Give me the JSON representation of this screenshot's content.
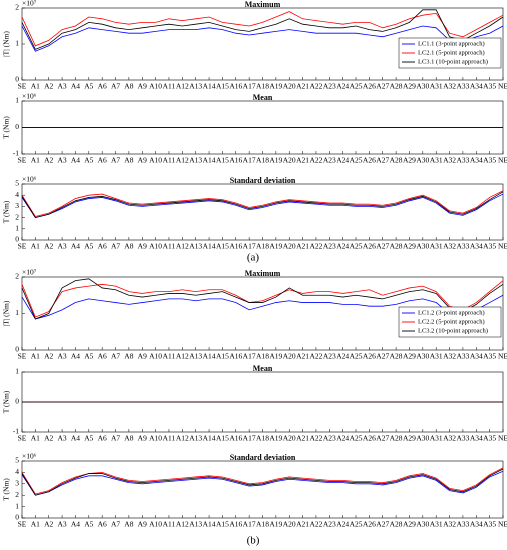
{
  "panel_labels": [
    "(a)",
    "(b)"
  ],
  "chart_data": [
    {
      "type": "line",
      "title": "Maximum",
      "y_label": "|T| (Nm)",
      "y_exponent": "×10⁷",
      "legend": "right",
      "categories": [
        "SE",
        "A1",
        "A2",
        "A3",
        "A4",
        "A5",
        "A6",
        "A7",
        "A8",
        "A9",
        "A10",
        "A11",
        "A12",
        "A13",
        "A14",
        "A15",
        "A16",
        "A17",
        "A18",
        "A19",
        "A20",
        "A21",
        "A22",
        "A23",
        "A24",
        "A25",
        "A26",
        "A27",
        "A28",
        "A29",
        "A30",
        "A31",
        "A32",
        "A33",
        "A34",
        "A35",
        "NE"
      ],
      "ylim": [
        0,
        2
      ],
      "yticks": [
        0,
        1,
        2
      ],
      "series": [
        {
          "name": "LC1.1 (3-point approach)",
          "color": "#0000ff",
          "values": [
            1.5,
            0.8,
            0.95,
            1.2,
            1.3,
            1.45,
            1.4,
            1.35,
            1.3,
            1.3,
            1.35,
            1.4,
            1.4,
            1.4,
            1.45,
            1.4,
            1.3,
            1.25,
            1.3,
            1.35,
            1.4,
            1.35,
            1.3,
            1.3,
            1.3,
            1.3,
            1.25,
            1.2,
            1.3,
            1.4,
            1.5,
            1.45,
            1.1,
            1.05,
            1.2,
            1.3,
            1.5
          ]
        },
        {
          "name": "LC2.1 (5-point approach)",
          "color": "#ff0000",
          "values": [
            1.75,
            0.95,
            1.1,
            1.4,
            1.5,
            1.75,
            1.7,
            1.6,
            1.55,
            1.6,
            1.6,
            1.7,
            1.65,
            1.7,
            1.75,
            1.6,
            1.55,
            1.5,
            1.6,
            1.75,
            1.9,
            1.7,
            1.65,
            1.6,
            1.55,
            1.6,
            1.6,
            1.45,
            1.55,
            1.7,
            1.8,
            1.85,
            1.3,
            1.2,
            1.4,
            1.6,
            1.8
          ]
        },
        {
          "name": "LC3.1 (10-point approach)",
          "color": "#000000",
          "values": [
            1.6,
            0.85,
            1.0,
            1.3,
            1.4,
            1.6,
            1.55,
            1.45,
            1.4,
            1.45,
            1.5,
            1.55,
            1.5,
            1.55,
            1.6,
            1.5,
            1.4,
            1.35,
            1.45,
            1.55,
            1.7,
            1.55,
            1.5,
            1.45,
            1.45,
            1.5,
            1.4,
            1.35,
            1.45,
            1.6,
            1.95,
            1.95,
            1.2,
            1.1,
            1.3,
            1.5,
            1.75
          ]
        }
      ]
    },
    {
      "type": "line",
      "title": "Mean",
      "y_label": "T (Nm)",
      "y_exponent": "×10⁶",
      "categories": [
        "SE",
        "A1",
        "A2",
        "A3",
        "A4",
        "A5",
        "A6",
        "A7",
        "A8",
        "A9",
        "A10",
        "A11",
        "A12",
        "A13",
        "A14",
        "A15",
        "A16",
        "A17",
        "A18",
        "A19",
        "A20",
        "A21",
        "A22",
        "A23",
        "A24",
        "A25",
        "A26",
        "A27",
        "A28",
        "A29",
        "A30",
        "A31",
        "A32",
        "A33",
        "A34",
        "A35",
        "NE"
      ],
      "ylim": [
        -1,
        1
      ],
      "yticks": [
        -1,
        0,
        1
      ],
      "series": [
        {
          "color": "#0000ff",
          "values": [
            0,
            0,
            0,
            0,
            0,
            0,
            0,
            0,
            0,
            0,
            0,
            0,
            0,
            0,
            0,
            0,
            0,
            0,
            0,
            0,
            0,
            0,
            0,
            0,
            0,
            0,
            0,
            0,
            0,
            0,
            0,
            0,
            0,
            0,
            0,
            0,
            0
          ]
        },
        {
          "color": "#ff0000",
          "values": [
            0,
            0,
            0,
            0,
            0,
            0,
            0,
            0,
            0,
            0,
            0,
            0,
            0,
            0,
            0,
            0,
            0,
            0,
            0,
            0,
            0,
            0,
            0,
            0,
            0,
            0,
            0,
            0,
            0,
            0,
            0,
            0,
            0,
            0,
            0,
            0,
            0
          ]
        },
        {
          "color": "#000000",
          "values": [
            0,
            0,
            0,
            0,
            0,
            0,
            0,
            0,
            0,
            0,
            0,
            0,
            0,
            0,
            0,
            0,
            0,
            0,
            0,
            0,
            0,
            0,
            0,
            0,
            0,
            0,
            0,
            0,
            0,
            0,
            0,
            0,
            0,
            0,
            0,
            0,
            0
          ]
        }
      ]
    },
    {
      "type": "line",
      "title": "Standard deviation",
      "y_label": "T (Nm)",
      "y_exponent": "×10⁶",
      "categories": [
        "SE",
        "A1",
        "A2",
        "A3",
        "A4",
        "A5",
        "A6",
        "A7",
        "A8",
        "A9",
        "A10",
        "A11",
        "A12",
        "A13",
        "A14",
        "A15",
        "A16",
        "A17",
        "A18",
        "A19",
        "A20",
        "A21",
        "A22",
        "A23",
        "A24",
        "A25",
        "A26",
        "A27",
        "A28",
        "A29",
        "A30",
        "A31",
        "A32",
        "A33",
        "A34",
        "A35",
        "NE"
      ],
      "ylim": [
        0,
        5
      ],
      "yticks": [
        0,
        1,
        2,
        3,
        4,
        5
      ],
      "series": [
        {
          "color": "#0000ff",
          "values": [
            3.8,
            2.0,
            2.3,
            2.8,
            3.4,
            3.7,
            3.8,
            3.5,
            3.1,
            3.0,
            3.1,
            3.2,
            3.3,
            3.4,
            3.5,
            3.4,
            3.1,
            2.7,
            2.9,
            3.2,
            3.4,
            3.3,
            3.2,
            3.1,
            3.1,
            3.0,
            3.0,
            2.9,
            3.1,
            3.5,
            3.8,
            3.3,
            2.4,
            2.2,
            2.7,
            3.5,
            4.1
          ]
        },
        {
          "color": "#ff0000",
          "values": [
            4.0,
            2.1,
            2.4,
            3.0,
            3.7,
            4.0,
            4.1,
            3.7,
            3.3,
            3.2,
            3.3,
            3.4,
            3.5,
            3.6,
            3.7,
            3.6,
            3.3,
            2.9,
            3.1,
            3.4,
            3.6,
            3.5,
            3.4,
            3.3,
            3.3,
            3.2,
            3.2,
            3.1,
            3.3,
            3.7,
            4.0,
            3.5,
            2.6,
            2.4,
            2.9,
            3.8,
            4.4
          ]
        },
        {
          "color": "#000000",
          "values": [
            3.9,
            2.0,
            2.3,
            2.9,
            3.5,
            3.8,
            3.9,
            3.6,
            3.2,
            3.1,
            3.2,
            3.3,
            3.4,
            3.5,
            3.6,
            3.5,
            3.2,
            2.8,
            3.0,
            3.3,
            3.5,
            3.4,
            3.3,
            3.2,
            3.2,
            3.1,
            3.1,
            3.0,
            3.2,
            3.6,
            3.9,
            3.4,
            2.5,
            2.3,
            2.8,
            3.6,
            4.3
          ]
        }
      ]
    },
    {
      "type": "line",
      "title": "Maximum",
      "y_label": "|T| (Nm)",
      "y_exponent": "×10⁷",
      "legend": "right",
      "categories": [
        "SE",
        "A1",
        "A2",
        "A3",
        "A4",
        "A5",
        "A6",
        "A7",
        "A8",
        "A9",
        "A10",
        "A11",
        "A12",
        "A13",
        "A14",
        "A15",
        "A16",
        "A17",
        "A18",
        "A19",
        "A20",
        "A21",
        "A22",
        "A23",
        "A24",
        "A25",
        "A26",
        "A27",
        "A28",
        "A29",
        "A30",
        "A31",
        "A32",
        "A33",
        "A34",
        "A35",
        "NE"
      ],
      "ylim": [
        0,
        2
      ],
      "yticks": [
        0,
        1,
        2
      ],
      "series": [
        {
          "name": "LC1.2 (3-point approach)",
          "color": "#0000ff",
          "values": [
            1.45,
            0.85,
            0.95,
            1.1,
            1.3,
            1.4,
            1.35,
            1.3,
            1.25,
            1.3,
            1.35,
            1.4,
            1.4,
            1.35,
            1.4,
            1.4,
            1.3,
            1.1,
            1.2,
            1.3,
            1.35,
            1.3,
            1.3,
            1.3,
            1.25,
            1.25,
            1.2,
            1.2,
            1.25,
            1.35,
            1.4,
            1.3,
            1.0,
            0.95,
            1.1,
            1.3,
            1.5
          ]
        },
        {
          "name": "LC2.2 (5-point approach)",
          "color": "#ff0000",
          "values": [
            1.8,
            0.9,
            1.05,
            1.6,
            1.7,
            1.75,
            1.8,
            1.75,
            1.6,
            1.55,
            1.6,
            1.6,
            1.65,
            1.6,
            1.65,
            1.65,
            1.5,
            1.3,
            1.35,
            1.5,
            1.65,
            1.55,
            1.6,
            1.6,
            1.55,
            1.6,
            1.65,
            1.5,
            1.6,
            1.7,
            1.75,
            1.6,
            1.2,
            1.1,
            1.3,
            1.6,
            1.9
          ]
        },
        {
          "name": "LC3.2 (10-point approach)",
          "color": "#000000",
          "values": [
            1.7,
            0.85,
            1.0,
            1.7,
            1.9,
            1.95,
            1.7,
            1.65,
            1.5,
            1.45,
            1.5,
            1.55,
            1.55,
            1.5,
            1.55,
            1.6,
            1.45,
            1.3,
            1.3,
            1.45,
            1.7,
            1.5,
            1.5,
            1.5,
            1.45,
            1.5,
            1.45,
            1.4,
            1.5,
            1.6,
            1.65,
            1.55,
            1.15,
            1.05,
            1.25,
            1.55,
            1.8
          ]
        }
      ]
    },
    {
      "type": "line",
      "title": "Mean",
      "y_label": "T (Nm)",
      "categories": [
        "SE",
        "A1",
        "A2",
        "A3",
        "A4",
        "A5",
        "A6",
        "A7",
        "A8",
        "A9",
        "A10",
        "A11",
        "A12",
        "A13",
        "A14",
        "A15",
        "A16",
        "A17",
        "A18",
        "A19",
        "A20",
        "A21",
        "A22",
        "A23",
        "A24",
        "A25",
        "A26",
        "A27",
        "A28",
        "A29",
        "A30",
        "A31",
        "A32",
        "A33",
        "A34",
        "A35",
        "NE"
      ],
      "ylim": [
        -1,
        1
      ],
      "yticks": [
        -1,
        0,
        1
      ],
      "series": [
        {
          "color": "#0000ff",
          "values": [
            0,
            0,
            0,
            0,
            0,
            0,
            0,
            0,
            0,
            0,
            0,
            0,
            0,
            0,
            0,
            0,
            0,
            0,
            0,
            0,
            0,
            0,
            0,
            0,
            0,
            0,
            0,
            0,
            0,
            0,
            0,
            0,
            0,
            0,
            0,
            0,
            0
          ]
        },
        {
          "color": "#ff0000",
          "values": [
            0,
            0,
            0,
            0,
            0,
            0,
            0,
            0,
            0,
            0,
            0,
            0,
            0,
            0,
            0,
            0,
            0,
            0,
            0,
            0,
            0,
            0,
            0,
            0,
            0,
            0,
            0,
            0,
            0,
            0,
            0,
            0,
            0,
            0,
            0,
            0,
            0
          ]
        },
        {
          "color": "#000000",
          "values": [
            0,
            0,
            0,
            0,
            0,
            0,
            0,
            0,
            0,
            0,
            0,
            0,
            0,
            0,
            0,
            0,
            0,
            0,
            0,
            0,
            0,
            0,
            0,
            0,
            0,
            0,
            0,
            0,
            0,
            0,
            0,
            0,
            0,
            0,
            0,
            0,
            0
          ]
        }
      ]
    },
    {
      "type": "line",
      "title": "Standard deviation",
      "y_label": "T (Nm)",
      "y_exponent": "×10⁶",
      "categories": [
        "SE",
        "A1",
        "A2",
        "A3",
        "A4",
        "A5",
        "A6",
        "A7",
        "A8",
        "A9",
        "A10",
        "A11",
        "A12",
        "A13",
        "A14",
        "A15",
        "A16",
        "A17",
        "A18",
        "A19",
        "A20",
        "A21",
        "A22",
        "A23",
        "A24",
        "A25",
        "A26",
        "A27",
        "A28",
        "A29",
        "A30",
        "A31",
        "A32",
        "A33",
        "A34",
        "A35",
        "NE"
      ],
      "ylim": [
        0,
        5
      ],
      "yticks": [
        0,
        1,
        2,
        3,
        4,
        5
      ],
      "series": [
        {
          "color": "#0000ff",
          "values": [
            3.8,
            2.0,
            2.3,
            2.9,
            3.4,
            3.7,
            3.7,
            3.4,
            3.1,
            3.0,
            3.1,
            3.2,
            3.3,
            3.4,
            3.5,
            3.4,
            3.1,
            2.8,
            2.9,
            3.2,
            3.4,
            3.3,
            3.2,
            3.1,
            3.1,
            3.0,
            3.0,
            2.9,
            3.1,
            3.5,
            3.7,
            3.3,
            2.4,
            2.2,
            2.7,
            3.6,
            4.1
          ]
        },
        {
          "color": "#ff0000",
          "values": [
            4.0,
            2.1,
            2.4,
            3.1,
            3.6,
            3.9,
            4.0,
            3.6,
            3.3,
            3.2,
            3.3,
            3.4,
            3.5,
            3.6,
            3.7,
            3.6,
            3.3,
            3.0,
            3.1,
            3.4,
            3.6,
            3.5,
            3.4,
            3.3,
            3.3,
            3.2,
            3.2,
            3.1,
            3.3,
            3.7,
            3.9,
            3.5,
            2.6,
            2.4,
            2.9,
            3.8,
            4.4
          ]
        },
        {
          "color": "#000000",
          "values": [
            3.9,
            2.0,
            2.3,
            3.0,
            3.5,
            3.9,
            3.9,
            3.5,
            3.2,
            3.1,
            3.2,
            3.3,
            3.4,
            3.5,
            3.6,
            3.5,
            3.2,
            2.9,
            3.0,
            3.3,
            3.5,
            3.4,
            3.3,
            3.2,
            3.2,
            3.1,
            3.1,
            3.0,
            3.2,
            3.6,
            3.8,
            3.4,
            2.5,
            2.3,
            2.8,
            3.7,
            4.3
          ]
        }
      ]
    }
  ]
}
